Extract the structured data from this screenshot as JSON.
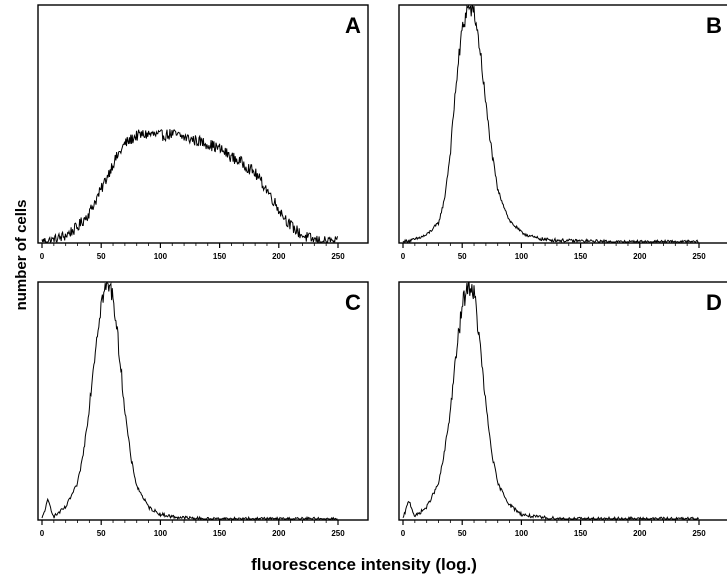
{
  "figure": {
    "ylabel": "number of cells",
    "xlabel": "fluorescence intensity (log.)"
  },
  "chart_data": [
    {
      "type": "line",
      "panel": "A",
      "xlim": [
        0,
        250
      ],
      "xticks": [
        "0",
        "50",
        "100",
        "150",
        "200",
        "250"
      ],
      "x": [
        0,
        10,
        20,
        30,
        40,
        50,
        60,
        70,
        80,
        90,
        100,
        110,
        120,
        130,
        140,
        150,
        160,
        170,
        180,
        190,
        200,
        210,
        220,
        230,
        240,
        250
      ],
      "y": [
        0,
        1,
        4,
        9,
        18,
        32,
        48,
        60,
        65,
        66,
        65,
        66,
        64,
        62,
        60,
        57,
        52,
        48,
        42,
        32,
        20,
        10,
        4,
        1,
        0,
        0
      ]
    },
    {
      "type": "line",
      "panel": "B",
      "xlim": [
        0,
        250
      ],
      "xticks": [
        "0",
        "50",
        "100",
        "150",
        "200",
        "250"
      ],
      "x": [
        0,
        10,
        20,
        30,
        35,
        40,
        45,
        50,
        55,
        60,
        65,
        70,
        75,
        80,
        90,
        100,
        110,
        120,
        140,
        160,
        180,
        200,
        250
      ],
      "y": [
        0,
        1,
        3,
        8,
        18,
        38,
        68,
        90,
        100,
        98,
        82,
        58,
        38,
        22,
        9,
        4,
        2,
        1,
        0.5,
        0.3,
        0,
        0,
        0
      ]
    },
    {
      "type": "line",
      "panel": "C",
      "xlim": [
        0,
        250
      ],
      "xticks": [
        "0",
        "50",
        "100",
        "150",
        "200",
        "250"
      ],
      "x": [
        0,
        5,
        10,
        20,
        30,
        35,
        40,
        45,
        50,
        55,
        60,
        65,
        70,
        75,
        80,
        90,
        100,
        110,
        120,
        140,
        160,
        250
      ],
      "y": [
        0,
        8,
        1,
        5,
        15,
        28,
        48,
        72,
        92,
        100,
        95,
        72,
        46,
        26,
        14,
        5,
        2,
        1,
        0.5,
        0,
        0,
        0
      ]
    },
    {
      "type": "line",
      "panel": "D",
      "xlim": [
        0,
        250
      ],
      "xticks": [
        "0",
        "50",
        "100",
        "150",
        "200",
        "250"
      ],
      "x": [
        0,
        5,
        10,
        20,
        30,
        35,
        40,
        45,
        50,
        55,
        60,
        65,
        70,
        75,
        80,
        90,
        100,
        110,
        120,
        140,
        160,
        250
      ],
      "y": [
        0,
        8,
        1,
        5,
        15,
        28,
        46,
        70,
        90,
        100,
        96,
        74,
        48,
        28,
        15,
        6,
        2,
        1,
        0.5,
        0,
        0,
        0
      ]
    }
  ]
}
